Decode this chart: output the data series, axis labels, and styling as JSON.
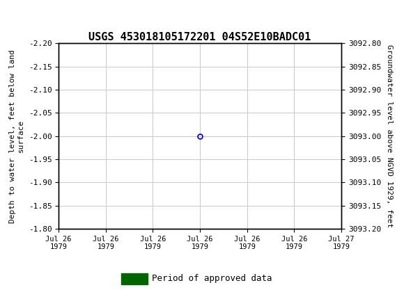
{
  "title": "USGS 453018105172201 04S52E10BADC01",
  "left_ylabel": "Depth to water level, feet below land\nsurface",
  "right_ylabel": "Groundwater level above NGVD 1929, feet",
  "ylim_left": [
    -2.2,
    -1.8
  ],
  "ylim_right": [
    3092.8,
    3093.2
  ],
  "yticks_left": [
    -2.2,
    -2.15,
    -2.1,
    -2.05,
    -2.0,
    -1.95,
    -1.9,
    -1.85,
    -1.8
  ],
  "yticks_right": [
    3092.8,
    3092.85,
    3092.9,
    3092.95,
    3093.0,
    3093.05,
    3093.1,
    3093.15,
    3093.2
  ],
  "data_x_hour": 12,
  "data_y": [
    -2.0
  ],
  "data_marker_color": "#0000bb",
  "data_marker_style": "o",
  "data_marker_size": 5,
  "legend_label": "Period of approved data",
  "legend_patch_color": "#006400",
  "header_color": "#1a7040",
  "background_color": "#ffffff",
  "grid_color": "#c8c8c8",
  "xtick_labels": [
    "Jul 26\n1979",
    "Jul 26\n1979",
    "Jul 26\n1979",
    "Jul 26\n1979",
    "Jul 26\n1979",
    "Jul 26\n1979",
    "Jul 27\n1979"
  ],
  "xtick_hours": [
    0,
    4,
    8,
    12,
    16,
    20,
    24
  ],
  "xlim": [
    0,
    24
  ],
  "font_family": "monospace",
  "title_fontsize": 11,
  "tick_fontsize": 8,
  "label_fontsize": 8
}
